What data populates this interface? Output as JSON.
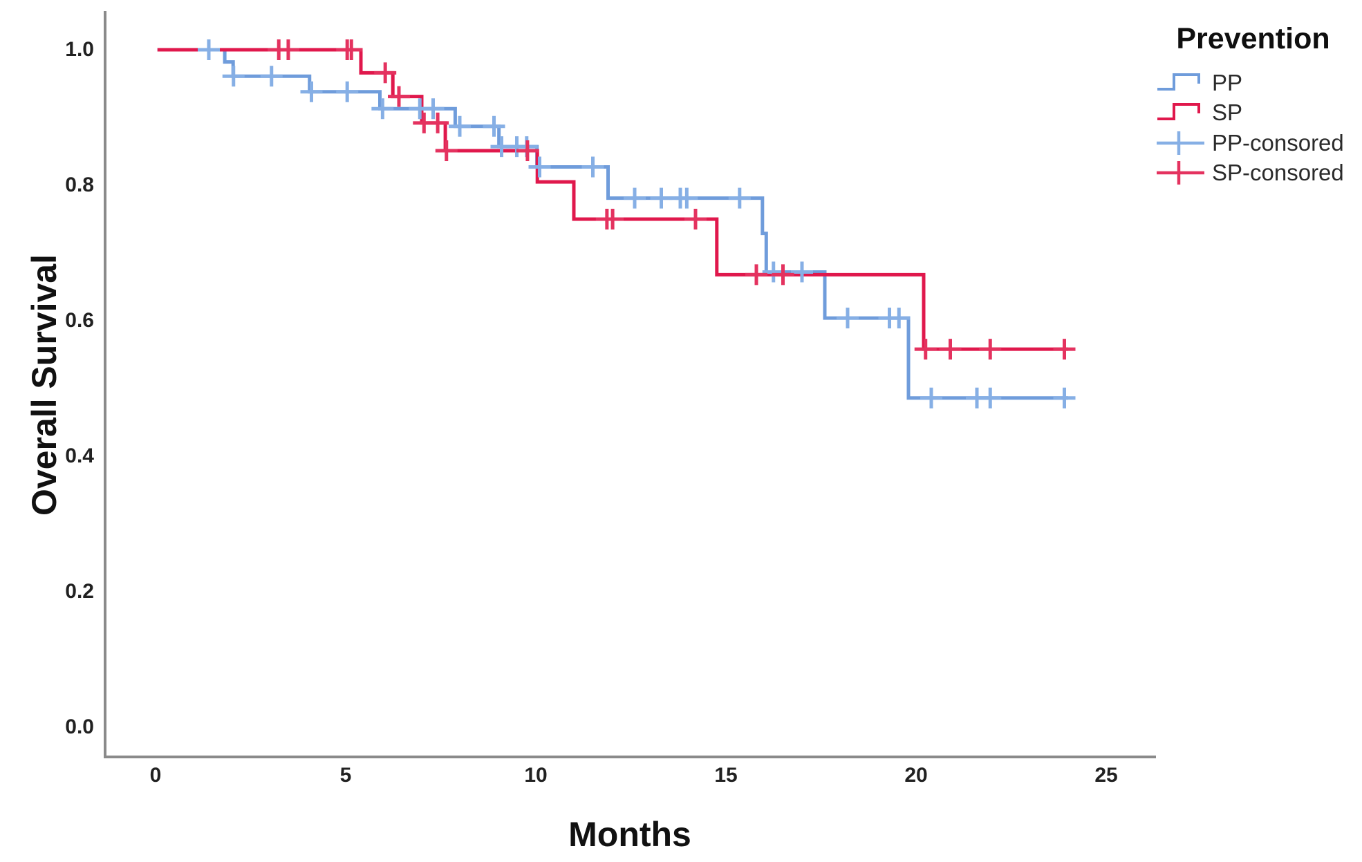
{
  "legend": {
    "title": "Prevention",
    "entries": [
      {
        "label": "PP",
        "symbol": "step-line",
        "color": "#6f9cdb"
      },
      {
        "label": "SP",
        "symbol": "step-line",
        "color": "#e0184c"
      },
      {
        "label": "PP-consored",
        "symbol": "censor-plus",
        "color": "#86afe5"
      },
      {
        "label": "SP-consored",
        "symbol": "censor-plus",
        "color": "#e4325f"
      }
    ]
  },
  "chart_data": {
    "type": "line",
    "subtype": "kaplan-meier-step-curves",
    "title": "",
    "xlabel": "Months",
    "ylabel": "Overall Survival",
    "xlim": [
      0,
      25
    ],
    "ylim": [
      0.0,
      1.0
    ],
    "grid": false,
    "legend_position": "top-right",
    "x_ticks": [
      {
        "label": "0",
        "value": 0
      },
      {
        "label": "5",
        "value": 5
      },
      {
        "label": "10",
        "value": 10
      },
      {
        "label": "15",
        "value": 15
      },
      {
        "label": "20",
        "value": 20
      },
      {
        "label": "25",
        "value": 25
      }
    ],
    "y_ticks": [
      {
        "label": "1.0",
        "value": 1.0
      },
      {
        "label": "0.8",
        "value": 0.8
      },
      {
        "label": "0.6",
        "value": 0.6
      },
      {
        "label": "0.4",
        "value": 0.4
      },
      {
        "label": "0.2",
        "value": 0.2
      },
      {
        "label": "0.0",
        "value": 0.0
      }
    ],
    "series": [
      {
        "name": "PP",
        "color": "#6f9cdb",
        "censor_color": "#86afe5",
        "start": [
          0.05,
          1.0
        ],
        "end_time": 24.0,
        "steps": [
          [
            1.82,
            0.982
          ],
          [
            2.04,
            0.961
          ],
          [
            4.05,
            0.938
          ],
          [
            5.9,
            0.913
          ],
          [
            7.88,
            0.887
          ],
          [
            9.03,
            0.857
          ],
          [
            10.03,
            0.827
          ],
          [
            11.9,
            0.781
          ],
          [
            15.96,
            0.729
          ],
          [
            16.06,
            0.672
          ],
          [
            17.6,
            0.604
          ],
          [
            19.8,
            0.486
          ]
        ],
        "censored": [
          [
            1.4,
            1.0
          ],
          [
            2.05,
            0.961
          ],
          [
            3.05,
            0.961
          ],
          [
            4.1,
            0.938
          ],
          [
            5.04,
            0.938
          ],
          [
            5.97,
            0.913
          ],
          [
            6.95,
            0.913
          ],
          [
            7.3,
            0.913
          ],
          [
            8.0,
            0.887
          ],
          [
            8.9,
            0.887
          ],
          [
            9.1,
            0.857
          ],
          [
            9.5,
            0.857
          ],
          [
            9.76,
            0.857
          ],
          [
            10.1,
            0.827
          ],
          [
            11.5,
            0.827
          ],
          [
            12.6,
            0.781
          ],
          [
            13.3,
            0.781
          ],
          [
            13.8,
            0.781
          ],
          [
            13.97,
            0.781
          ],
          [
            15.36,
            0.781
          ],
          [
            16.25,
            0.672
          ],
          [
            17.0,
            0.672
          ],
          [
            18.2,
            0.604
          ],
          [
            19.3,
            0.604
          ],
          [
            19.55,
            0.604
          ],
          [
            20.4,
            0.486
          ],
          [
            21.6,
            0.486
          ],
          [
            21.95,
            0.486
          ],
          [
            23.9,
            0.486
          ]
        ]
      },
      {
        "name": "SP",
        "color": "#e0184c",
        "censor_color": "#e4325f",
        "start": [
          0.05,
          1.0
        ],
        "end_time": 24.0,
        "steps": [
          [
            5.4,
            0.966
          ],
          [
            6.24,
            0.931
          ],
          [
            7.0,
            0.892
          ],
          [
            7.62,
            0.851
          ],
          [
            10.04,
            0.805
          ],
          [
            11.0,
            0.75
          ],
          [
            14.76,
            0.668
          ],
          [
            20.2,
            0.558
          ]
        ],
        "censored": [
          [
            3.24,
            1.0
          ],
          [
            3.49,
            1.0
          ],
          [
            5.04,
            1.0
          ],
          [
            5.15,
            1.0
          ],
          [
            6.04,
            0.966
          ],
          [
            6.4,
            0.931
          ],
          [
            7.06,
            0.892
          ],
          [
            7.42,
            0.892
          ],
          [
            7.65,
            0.851
          ],
          [
            9.78,
            0.851
          ],
          [
            11.87,
            0.75
          ],
          [
            12.02,
            0.75
          ],
          [
            14.2,
            0.75
          ],
          [
            15.8,
            0.668
          ],
          [
            16.5,
            0.668
          ],
          [
            20.25,
            0.558
          ],
          [
            20.9,
            0.558
          ],
          [
            21.95,
            0.558
          ],
          [
            23.9,
            0.558
          ]
        ]
      }
    ],
    "axis_color": "#8a8a8a"
  }
}
